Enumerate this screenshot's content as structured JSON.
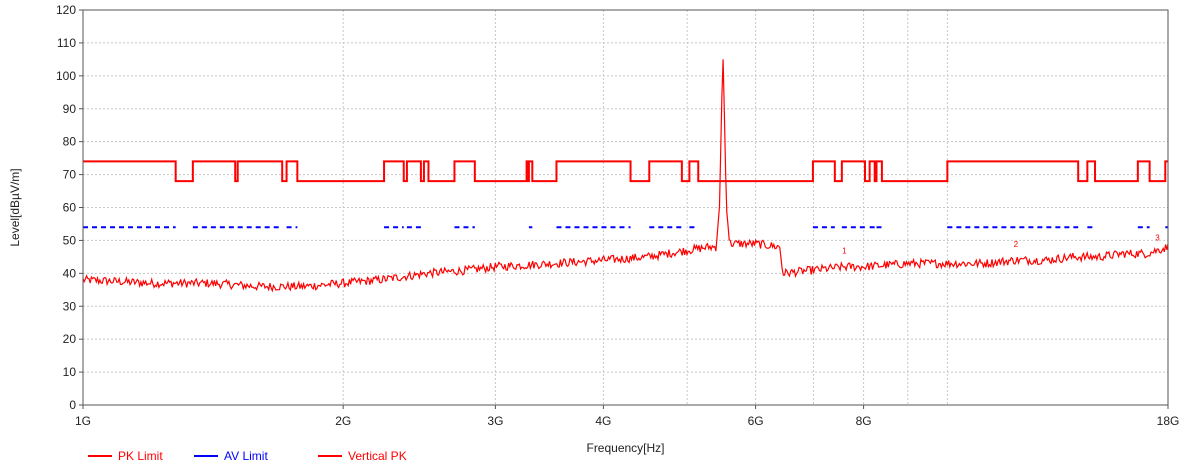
{
  "chart_data": {
    "type": "line",
    "xlabel": "Frequency[Hz]",
    "ylabel": "Level[dBµV/m]",
    "x_scale": "log",
    "xlim": [
      1000000000,
      18000000000
    ],
    "ylim": [
      0,
      120
    ],
    "grid": true,
    "legend_position": "bottom-left",
    "x_ticks": [
      {
        "value": 1000000000,
        "label": "1G"
      },
      {
        "value": 2000000000,
        "label": "2G"
      },
      {
        "value": 3000000000,
        "label": "3G"
      },
      {
        "value": 4000000000,
        "label": "4G"
      },
      {
        "value": 6000000000,
        "label": "6G"
      },
      {
        "value": 8000000000,
        "label": "8G"
      },
      {
        "value": 18000000000,
        "label": "18G"
      }
    ],
    "x_minor_gridlines": [
      5000000000,
      7000000000,
      9000000000,
      10000000000
    ],
    "y_ticks": [
      0,
      10,
      20,
      30,
      40,
      50,
      60,
      70,
      80,
      90,
      100,
      110,
      120
    ],
    "series": [
      {
        "name": "PK Limit",
        "color": "#ff0000",
        "style": "step",
        "high": 74,
        "low": 68,
        "low_bands_GHz": [
          [
            1.28,
            1.34
          ],
          [
            1.5,
            1.51
          ],
          [
            1.7,
            1.72
          ],
          [
            1.77,
            2.23
          ],
          [
            2.35,
            2.37
          ],
          [
            2.46,
            2.48
          ],
          [
            2.51,
            2.69
          ],
          [
            2.84,
            3.26
          ],
          [
            3.27,
            3.28
          ],
          [
            3.31,
            3.53
          ],
          [
            4.3,
            4.52
          ],
          [
            4.93,
            5.03
          ],
          [
            5.15,
            6.99
          ],
          [
            7.41,
            7.55
          ],
          [
            8.03,
            8.13
          ],
          [
            8.24,
            8.28
          ],
          [
            8.4,
            10.0
          ],
          [
            14.17,
            14.52
          ],
          [
            14.82,
            16.61
          ],
          [
            17.14,
            17.87
          ]
        ]
      },
      {
        "name": "AV Limit",
        "color": "#0000ff",
        "style": "dashed",
        "value": 54,
        "bands_GHz": [
          [
            1.0,
            1.28
          ],
          [
            1.34,
            1.5
          ],
          [
            1.51,
            1.7
          ],
          [
            1.72,
            1.77
          ],
          [
            2.23,
            2.35
          ],
          [
            2.37,
            2.46
          ],
          [
            2.69,
            2.84
          ],
          [
            3.28,
            3.31
          ],
          [
            3.53,
            4.3
          ],
          [
            4.52,
            4.93
          ],
          [
            5.03,
            5.15
          ],
          [
            6.99,
            7.41
          ],
          [
            7.55,
            8.03
          ],
          [
            8.13,
            8.24
          ],
          [
            8.28,
            8.4
          ],
          [
            10.0,
            14.17
          ],
          [
            14.52,
            14.82
          ],
          [
            16.61,
            17.14
          ],
          [
            17.87,
            18.0
          ]
        ]
      },
      {
        "name": "Vertical PK",
        "color": "#ff0000",
        "style": "line",
        "x_GHz": [
          1.0,
          1.2,
          1.4,
          1.6,
          1.8,
          2.0,
          2.2,
          2.5,
          2.8,
          3.0,
          3.5,
          4.0,
          4.5,
          5.0,
          5.3,
          5.4,
          5.45,
          5.5,
          5.55,
          5.6,
          6.0,
          6.4,
          6.45,
          7.0,
          7.6,
          8.0,
          9.0,
          10.0,
          11.0,
          12.0,
          13.0,
          14.0,
          15.0,
          16.0,
          17.0,
          18.0
        ],
        "y": [
          38,
          37,
          37,
          36,
          36,
          37,
          38,
          40,
          41,
          42,
          43,
          44,
          45,
          47,
          48,
          48,
          60,
          108,
          60,
          49,
          49,
          48,
          40,
          41,
          42,
          42,
          43,
          43,
          43,
          44,
          44,
          45,
          45,
          46,
          46,
          48
        ]
      }
    ],
    "annotations": [
      "1",
      "2",
      "3"
    ]
  }
}
